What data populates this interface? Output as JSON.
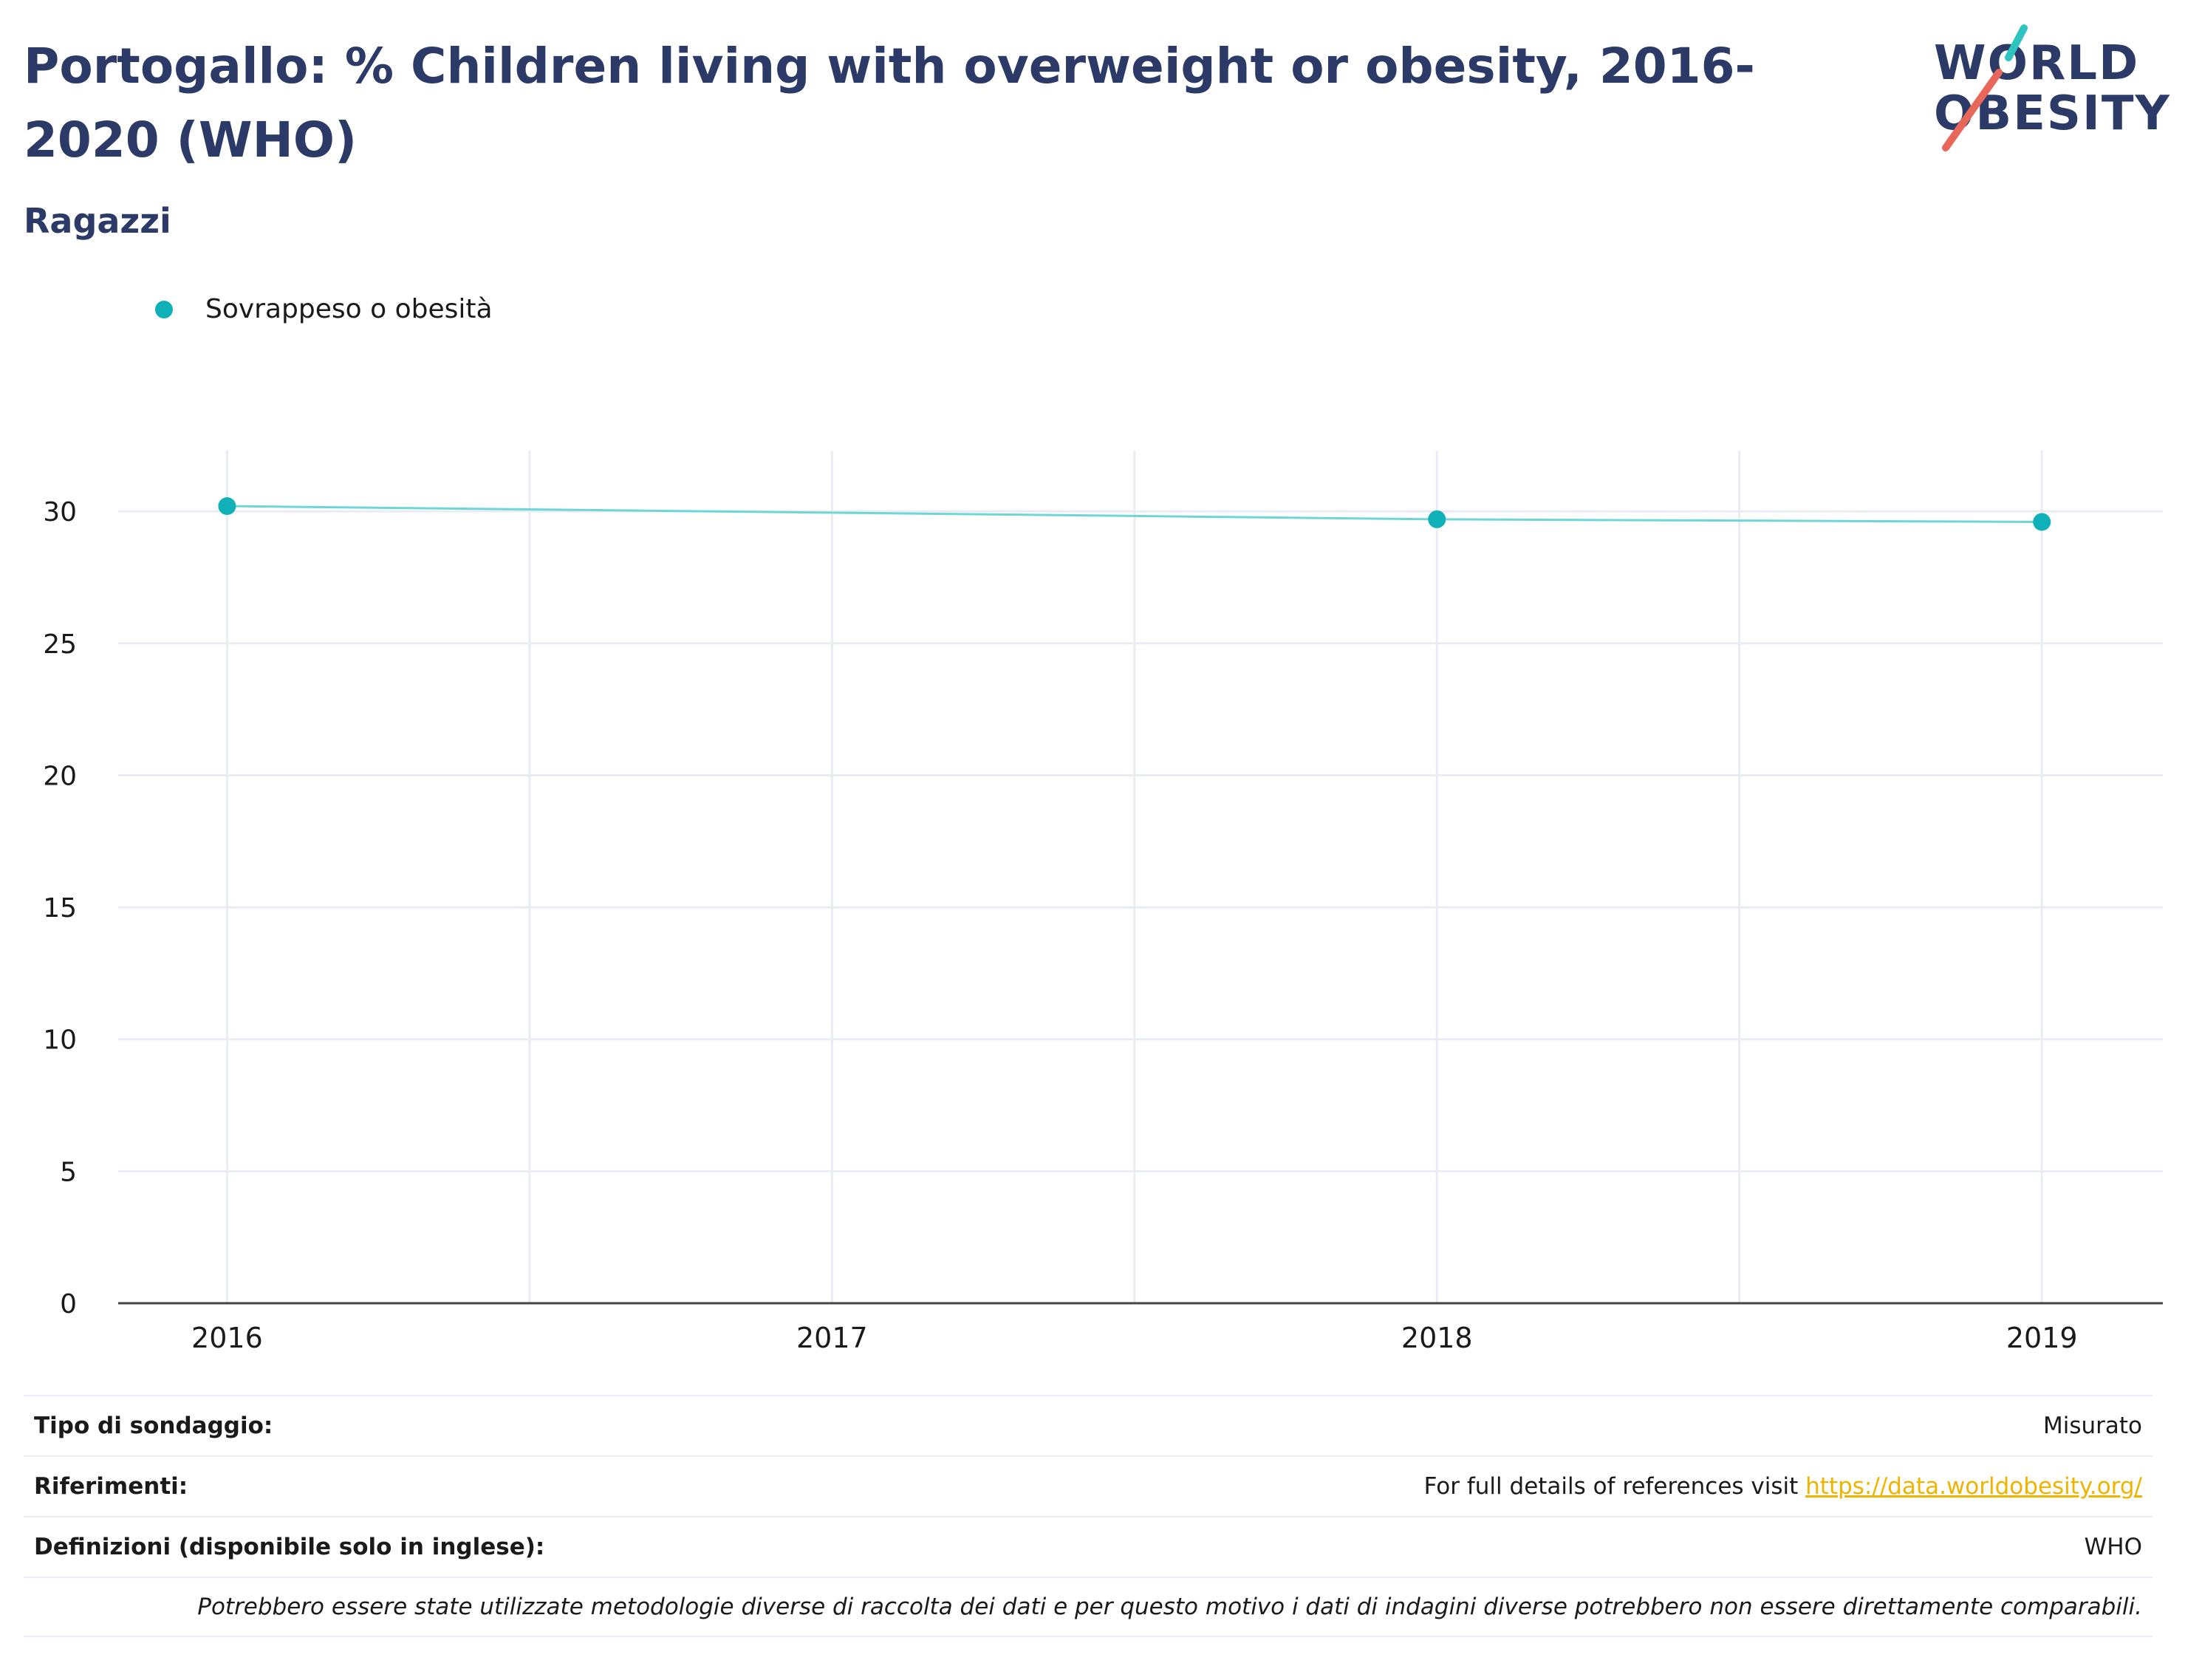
{
  "header": {
    "title": "Portogallo: % Children living with overweight or obesity, 2016-2020 (WHO)",
    "subtitle": "Ragazzi"
  },
  "logo": {
    "line1": "WORLD",
    "line2": "OBESITY",
    "teal": "#2ec4c0",
    "coral": "#e8675a"
  },
  "colors": {
    "series": "#0fb0b7",
    "line": "#6fd6d8",
    "grid": "#e9ecf2",
    "axis": "#444444"
  },
  "chart_data": {
    "type": "line",
    "x": [
      2016,
      2018,
      2019
    ],
    "xticks": [
      "2016",
      "2017",
      "2018",
      "2019"
    ],
    "xlim": [
      2015.82,
      2019.2
    ],
    "ylim": [
      0,
      32.3
    ],
    "yticks": [
      "0",
      "5",
      "10",
      "15",
      "20",
      "25",
      "30"
    ],
    "series": [
      {
        "name": "Sovrappeso o obesità",
        "values": [
          30.2,
          29.7,
          29.6
        ]
      }
    ],
    "grid": true,
    "legend": "top-left"
  },
  "info": {
    "survey_label": "Tipo di sondaggio:",
    "survey_value": "Misurato",
    "refs_label": "Riferimenti:",
    "refs_text": "For full details of references visit ",
    "refs_link": "https://data.worldobesity.org/",
    "defs_label": "Definizioni (disponibile solo in inglese):",
    "defs_value": "WHO",
    "note": "Potrebbero essere state utilizzate metodologie diverse di raccolta dei dati e per questo motivo i dati di indagini diverse potrebbero non essere direttamente comparabili."
  }
}
